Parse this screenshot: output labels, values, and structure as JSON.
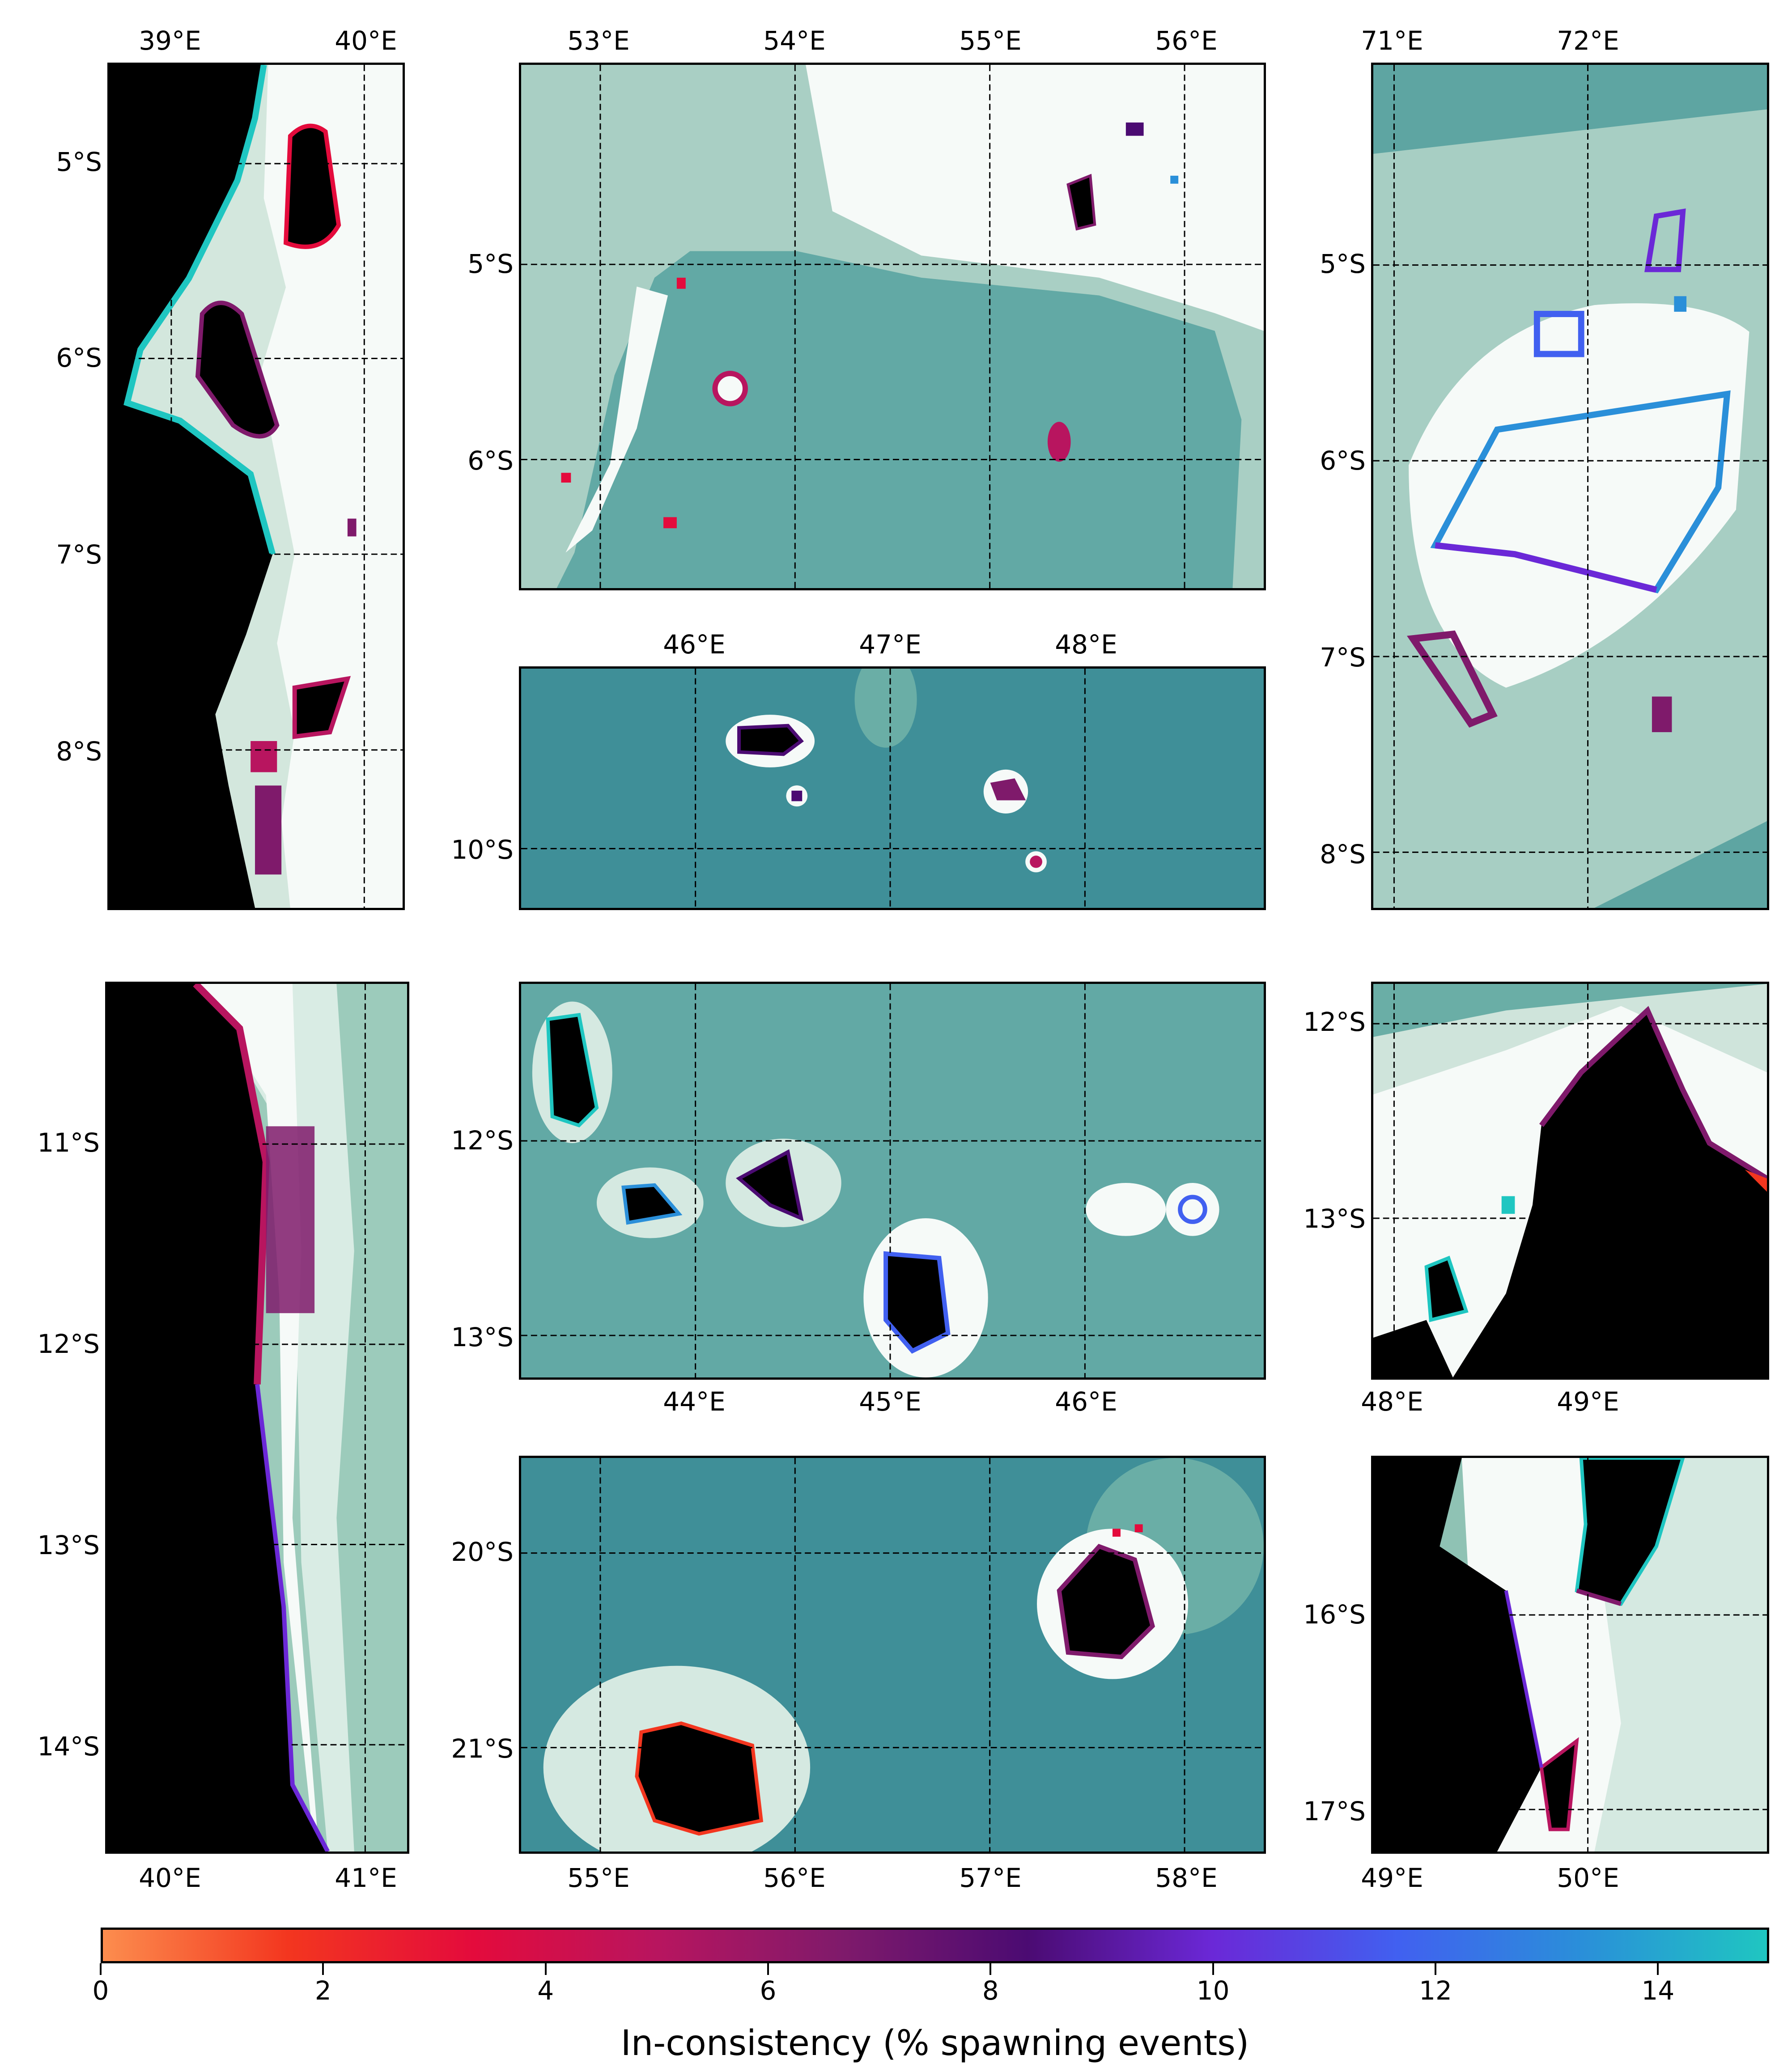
{
  "colorbar": {
    "label": "In-consistency (% spawning events)",
    "min": 0,
    "max": 15,
    "ticks": [
      "0",
      "2",
      "4",
      "6",
      "8",
      "10",
      "12",
      "14"
    ],
    "stops": [
      "#fc8d4e",
      "#f3361f",
      "#e40b3c",
      "#b8155f",
      "#7f1a6b",
      "#4b0b72",
      "#6b28d7",
      "#4160f0",
      "#2a8fd9",
      "#1fc6c1"
    ]
  },
  "colors": {
    "land": "#000000",
    "ocean_deep": "#3f8f98",
    "ocean_mid": "#6aaea6",
    "ocean_shallow": "#c9e1d8",
    "reef_white": "#f7fbf9"
  },
  "panels": [
    {
      "id": "p1",
      "lonTicks": [
        "39°E",
        "40°E"
      ],
      "latTicks": [
        "5°S",
        "6°S",
        "7°S",
        "8°S"
      ],
      "lonPos": "top"
    },
    {
      "id": "p2",
      "lonTicks": [
        "53°E",
        "54°E",
        "55°E",
        "56°E"
      ],
      "latTicks": [
        "5°S",
        "6°S"
      ],
      "lonPos": "top"
    },
    {
      "id": "p3",
      "lonTicks": [
        "71°E",
        "72°E"
      ],
      "latTicks": [
        "5°S",
        "6°S",
        "7°S",
        "8°S"
      ],
      "lonPos": "top"
    },
    {
      "id": "p4",
      "lonTicks": [
        "46°E",
        "47°E",
        "48°E"
      ],
      "latTicks": [
        "10°S"
      ],
      "lonPos": "top"
    },
    {
      "id": "p5",
      "lonTicks": [
        "40°E",
        "41°E"
      ],
      "latTicks": [
        "11°S",
        "12°S",
        "13°S",
        "14°S"
      ],
      "lonPos": "bottom"
    },
    {
      "id": "p6",
      "lonTicks": [
        "44°E",
        "45°E",
        "46°E"
      ],
      "latTicks": [
        "12°S",
        "13°S"
      ],
      "lonPos": "bottom"
    },
    {
      "id": "p7",
      "lonTicks": [
        "48°E",
        "49°E"
      ],
      "latTicks": [
        "12°S",
        "13°S"
      ],
      "lonPos": "bottom"
    },
    {
      "id": "p8",
      "lonTicks": [
        "55°E",
        "56°E",
        "57°E",
        "58°E"
      ],
      "latTicks": [
        "20°S",
        "21°S"
      ],
      "lonPos": "bottom"
    },
    {
      "id": "p9",
      "lonTicks": [
        "49°E",
        "50°E"
      ],
      "latTicks": [
        "16°S",
        "17°S"
      ],
      "lonPos": "bottom"
    }
  ]
}
